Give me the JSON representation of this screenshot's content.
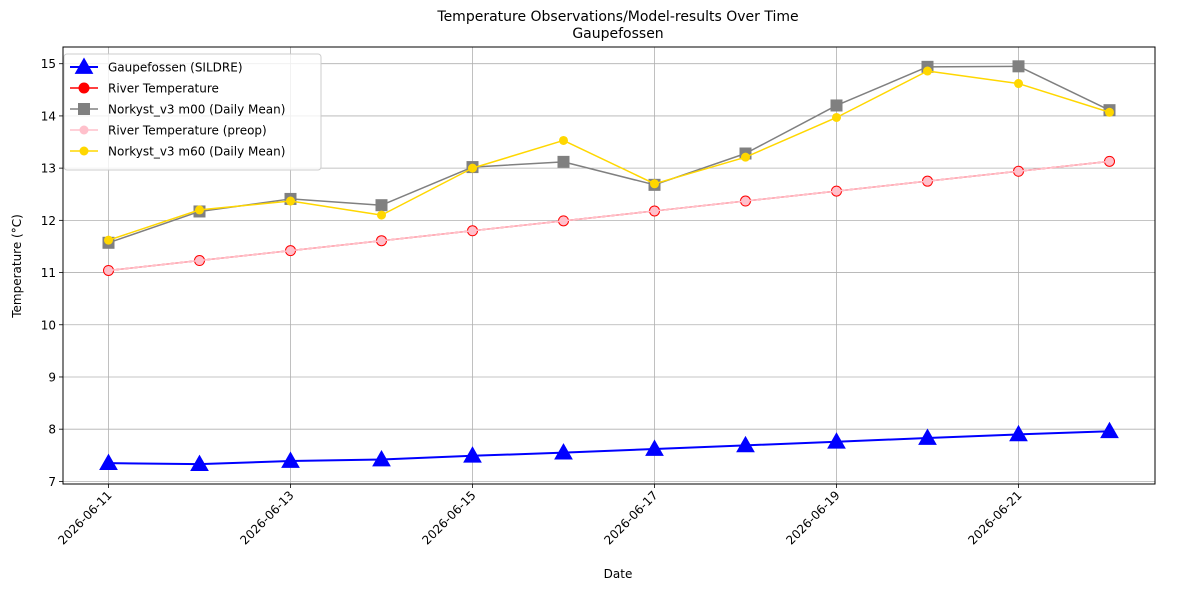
{
  "chart_data": {
    "type": "line",
    "title": "Temperature Observations/Model-results Over Time",
    "subtitle": "Gaupefossen",
    "xlabel": "Date",
    "ylabel": "Temperature (°C)",
    "x": [
      "2026-06-11",
      "2026-06-12",
      "2026-06-13",
      "2026-06-14",
      "2026-06-15",
      "2026-06-16",
      "2026-06-17",
      "2026-06-18",
      "2026-06-19",
      "2026-06-20",
      "2026-06-21",
      "2026-06-22"
    ],
    "xlim": [
      "2026-06-10T12:00",
      "2026-06-22T12:00"
    ],
    "xticks": [
      "2026-06-11",
      "2026-06-13",
      "2026-06-15",
      "2026-06-17",
      "2026-06-19",
      "2026-06-21"
    ],
    "ylim": [
      6.95,
      15.32
    ],
    "yticks": [
      7,
      8,
      9,
      10,
      11,
      12,
      13,
      14,
      15
    ],
    "grid": true,
    "legend_position": "top-left",
    "series": [
      {
        "name": "Gaupefossen (SILDRE)",
        "color": "#0000ff",
        "marker": "triangle",
        "values": [
          7.35,
          7.33,
          7.39,
          7.42,
          7.49,
          7.55,
          7.62,
          7.69,
          7.76,
          7.83,
          7.9,
          7.96
        ]
      },
      {
        "name": "River Temperature",
        "color": "#ff0000",
        "marker": "circle",
        "values": [
          11.04,
          11.23,
          11.42,
          11.61,
          11.8,
          11.99,
          12.18,
          12.37,
          12.56,
          12.75,
          12.94,
          13.13
        ]
      },
      {
        "name": "Norkyst_v3 m00 (Daily Mean)",
        "color": "#808080",
        "marker": "square",
        "values": [
          11.57,
          12.17,
          12.41,
          12.29,
          13.02,
          13.12,
          12.68,
          13.28,
          14.2,
          14.94,
          14.95,
          14.11
        ]
      },
      {
        "name": "River Temperature (preop)",
        "color": "#ffc0cb",
        "marker": "small-circle",
        "values": [
          11.04,
          11.23,
          11.42,
          11.61,
          11.8,
          11.99,
          12.18,
          12.37,
          12.56,
          12.75,
          12.94,
          13.13
        ]
      },
      {
        "name": "Norkyst_v3 m60 (Daily Mean)",
        "color": "#ffd700",
        "marker": "small-circle",
        "values": [
          11.62,
          12.2,
          12.37,
          12.1,
          13.0,
          13.53,
          12.7,
          13.21,
          13.97,
          14.86,
          14.62,
          14.07
        ]
      }
    ]
  }
}
